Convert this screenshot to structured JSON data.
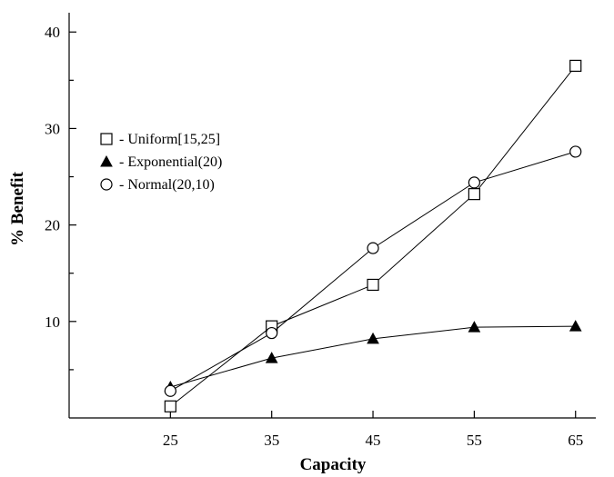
{
  "chart_data": {
    "type": "line",
    "title": "",
    "xlabel": "Capacity",
    "ylabel": "% Benefit",
    "x": [
      25,
      35,
      45,
      55,
      65
    ],
    "xticks": [
      25,
      35,
      45,
      55,
      65
    ],
    "yticks": [
      10,
      20,
      30,
      40
    ],
    "xlim": [
      15,
      67
    ],
    "ylim": [
      0,
      42
    ],
    "grid": false,
    "legend_position": "upper-left",
    "series": [
      {
        "name": "- Uniform[15,25]",
        "marker": "open-square",
        "values": [
          1.2,
          9.5,
          13.8,
          23.2,
          36.5
        ]
      },
      {
        "name": "- Exponential(20)",
        "marker": "filled-triangle",
        "values": [
          3.2,
          6.2,
          8.2,
          9.4,
          9.5
        ]
      },
      {
        "name": "- Normal(20,10)",
        "marker": "open-circle",
        "values": [
          2.8,
          8.8,
          17.6,
          24.4,
          27.6
        ]
      }
    ]
  }
}
